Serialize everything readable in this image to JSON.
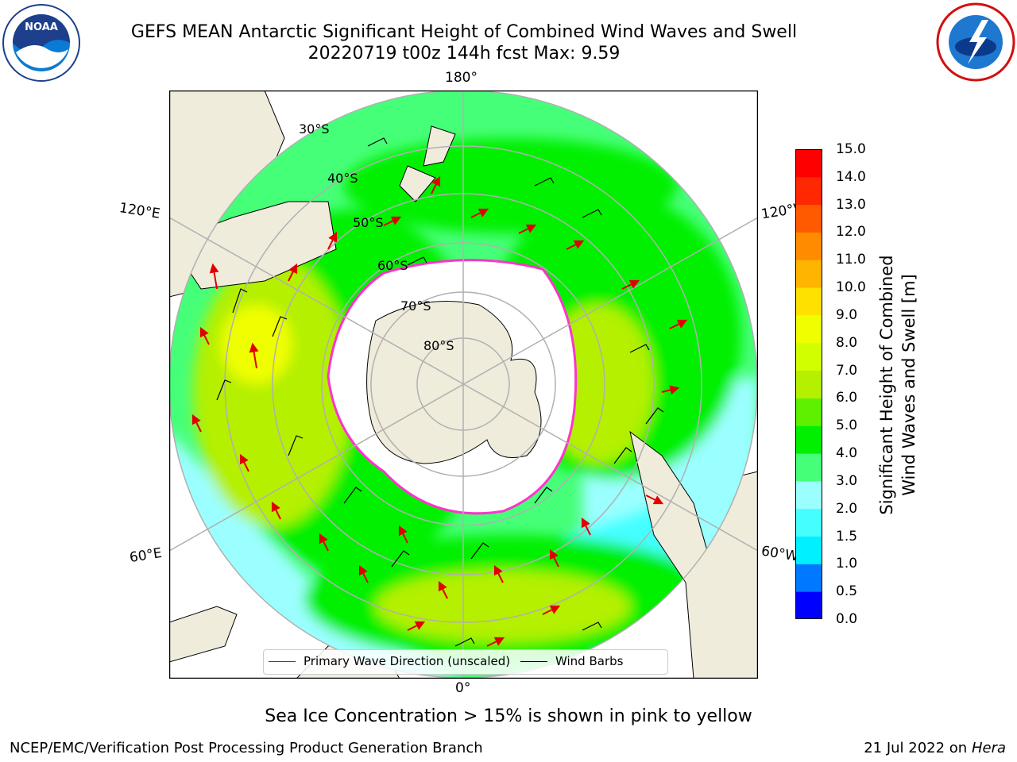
{
  "title": {
    "line1": "GEFS MEAN Antarctic Significant Height of Combined Wind Waves and Swell",
    "line2": "20220719 t00z 144h fcst   Max: 9.59"
  },
  "map": {
    "projection": "south-polar-stereographic",
    "longitude_labels": {
      "top": "180°",
      "bottom": "0°",
      "upper_left": "120°E",
      "upper_right": "120°W",
      "lower_left": "60°E",
      "lower_right": "60°W"
    },
    "latitude_labels": [
      "30°S",
      "40°S",
      "50°S",
      "60°S",
      "70°S",
      "80°S"
    ],
    "colors": {
      "land": "#efecdc",
      "graticule": "#b0b0b0",
      "ice_edge": "#ff33cc",
      "ice_interior": "#ffffff"
    }
  },
  "colorbar": {
    "label_line1": "Significant Height of Combined",
    "label_line2": "Wind Waves and Swell [m]",
    "ticks": [
      "15.0",
      "14.0",
      "13.0",
      "12.0",
      "11.0",
      "10.0",
      "9.0",
      "8.0",
      "7.0",
      "6.0",
      "5.0",
      "4.0",
      "3.0",
      "2.0",
      "1.5",
      "1.0",
      "0.5",
      "0.0"
    ],
    "levels": [
      0.0,
      0.5,
      1.0,
      1.5,
      2.0,
      3.0,
      4.0,
      5.0,
      6.0,
      7.0,
      8.0,
      9.0,
      10.0,
      11.0,
      12.0,
      13.0,
      14.0,
      15.0
    ],
    "colors": [
      "#0000ff",
      "#0078ff",
      "#00f0ff",
      "#45ffff",
      "#9bffff",
      "#46ff78",
      "#00f000",
      "#5ff000",
      "#b4f000",
      "#d2ff00",
      "#f0ff00",
      "#ffe100",
      "#ffb400",
      "#ff8c00",
      "#ff5a00",
      "#ff2800",
      "#ff0000"
    ]
  },
  "legend": {
    "wave_direction": "Primary Wave Direction (unscaled)",
    "wind_barbs": "Wind Barbs"
  },
  "notes": {
    "ice": "Sea Ice Concentration > 15% is shown in pink to yellow"
  },
  "footer": {
    "left": "NCEP/EMC/Verification Post Processing Product Generation Branch",
    "date": "21 Jul 2022 on ",
    "machine": "Hera"
  }
}
